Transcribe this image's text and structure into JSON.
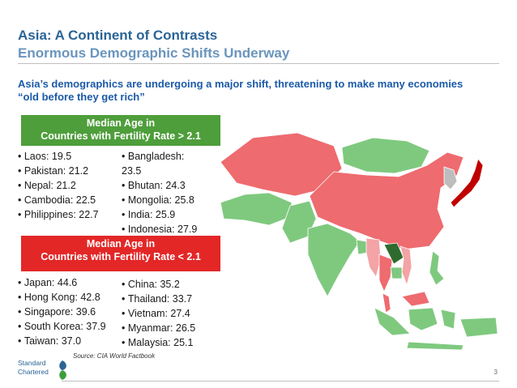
{
  "slide": {
    "title": "Asia: A Continent of Contrasts",
    "subtitle": "Enormous Demographic Shifts Underway",
    "intro": "Asia’s demographics are undergoing a major shift, threatening to make many economies “old before they get rich”",
    "page_number": "3",
    "source": "Source: CIA World Factbook"
  },
  "high_fertility": {
    "header_line1": "Median Age in",
    "header_line2": "Countries with Fertility Rate > 2.1",
    "color": "#4e9e3b",
    "col1": [
      "Laos: 19.5",
      "Pakistan: 21.2",
      "Nepal: 21.2",
      "Cambodia: 22.5",
      "Philippines: 22.7"
    ],
    "col2": [
      "Bangladesh:",
      "23.5",
      "Bhutan: 24.3",
      "Mongolia: 25.8",
      "India: 25.9",
      "Indonesia: 27.9"
    ]
  },
  "low_fertility": {
    "header_line1": "Median Age in",
    "header_line2": "Countries with Fertility Rate < 2.1",
    "color": "#e32727",
    "col1": [
      "Japan: 44.6",
      "Hong Kong: 42.8",
      "Singapore: 39.6",
      "South Korea: 37.9",
      "Taiwan: 37.0"
    ],
    "col2": [
      "China: 35.2",
      "Thailand: 33.7",
      "Vietnam: 27.4",
      "Myanmar: 26.5",
      "Malaysia: 25.1"
    ]
  },
  "logo": {
    "line1": "Standard",
    "line2": "Chartered"
  },
  "map_colors": {
    "young_light": "#7fc97f",
    "young_dark": "#2e6b2e",
    "old_light": "#ee6b6f",
    "old_dark": "#c00000",
    "mid": "#f4a3a6",
    "neutral": "#bdbdbd"
  }
}
